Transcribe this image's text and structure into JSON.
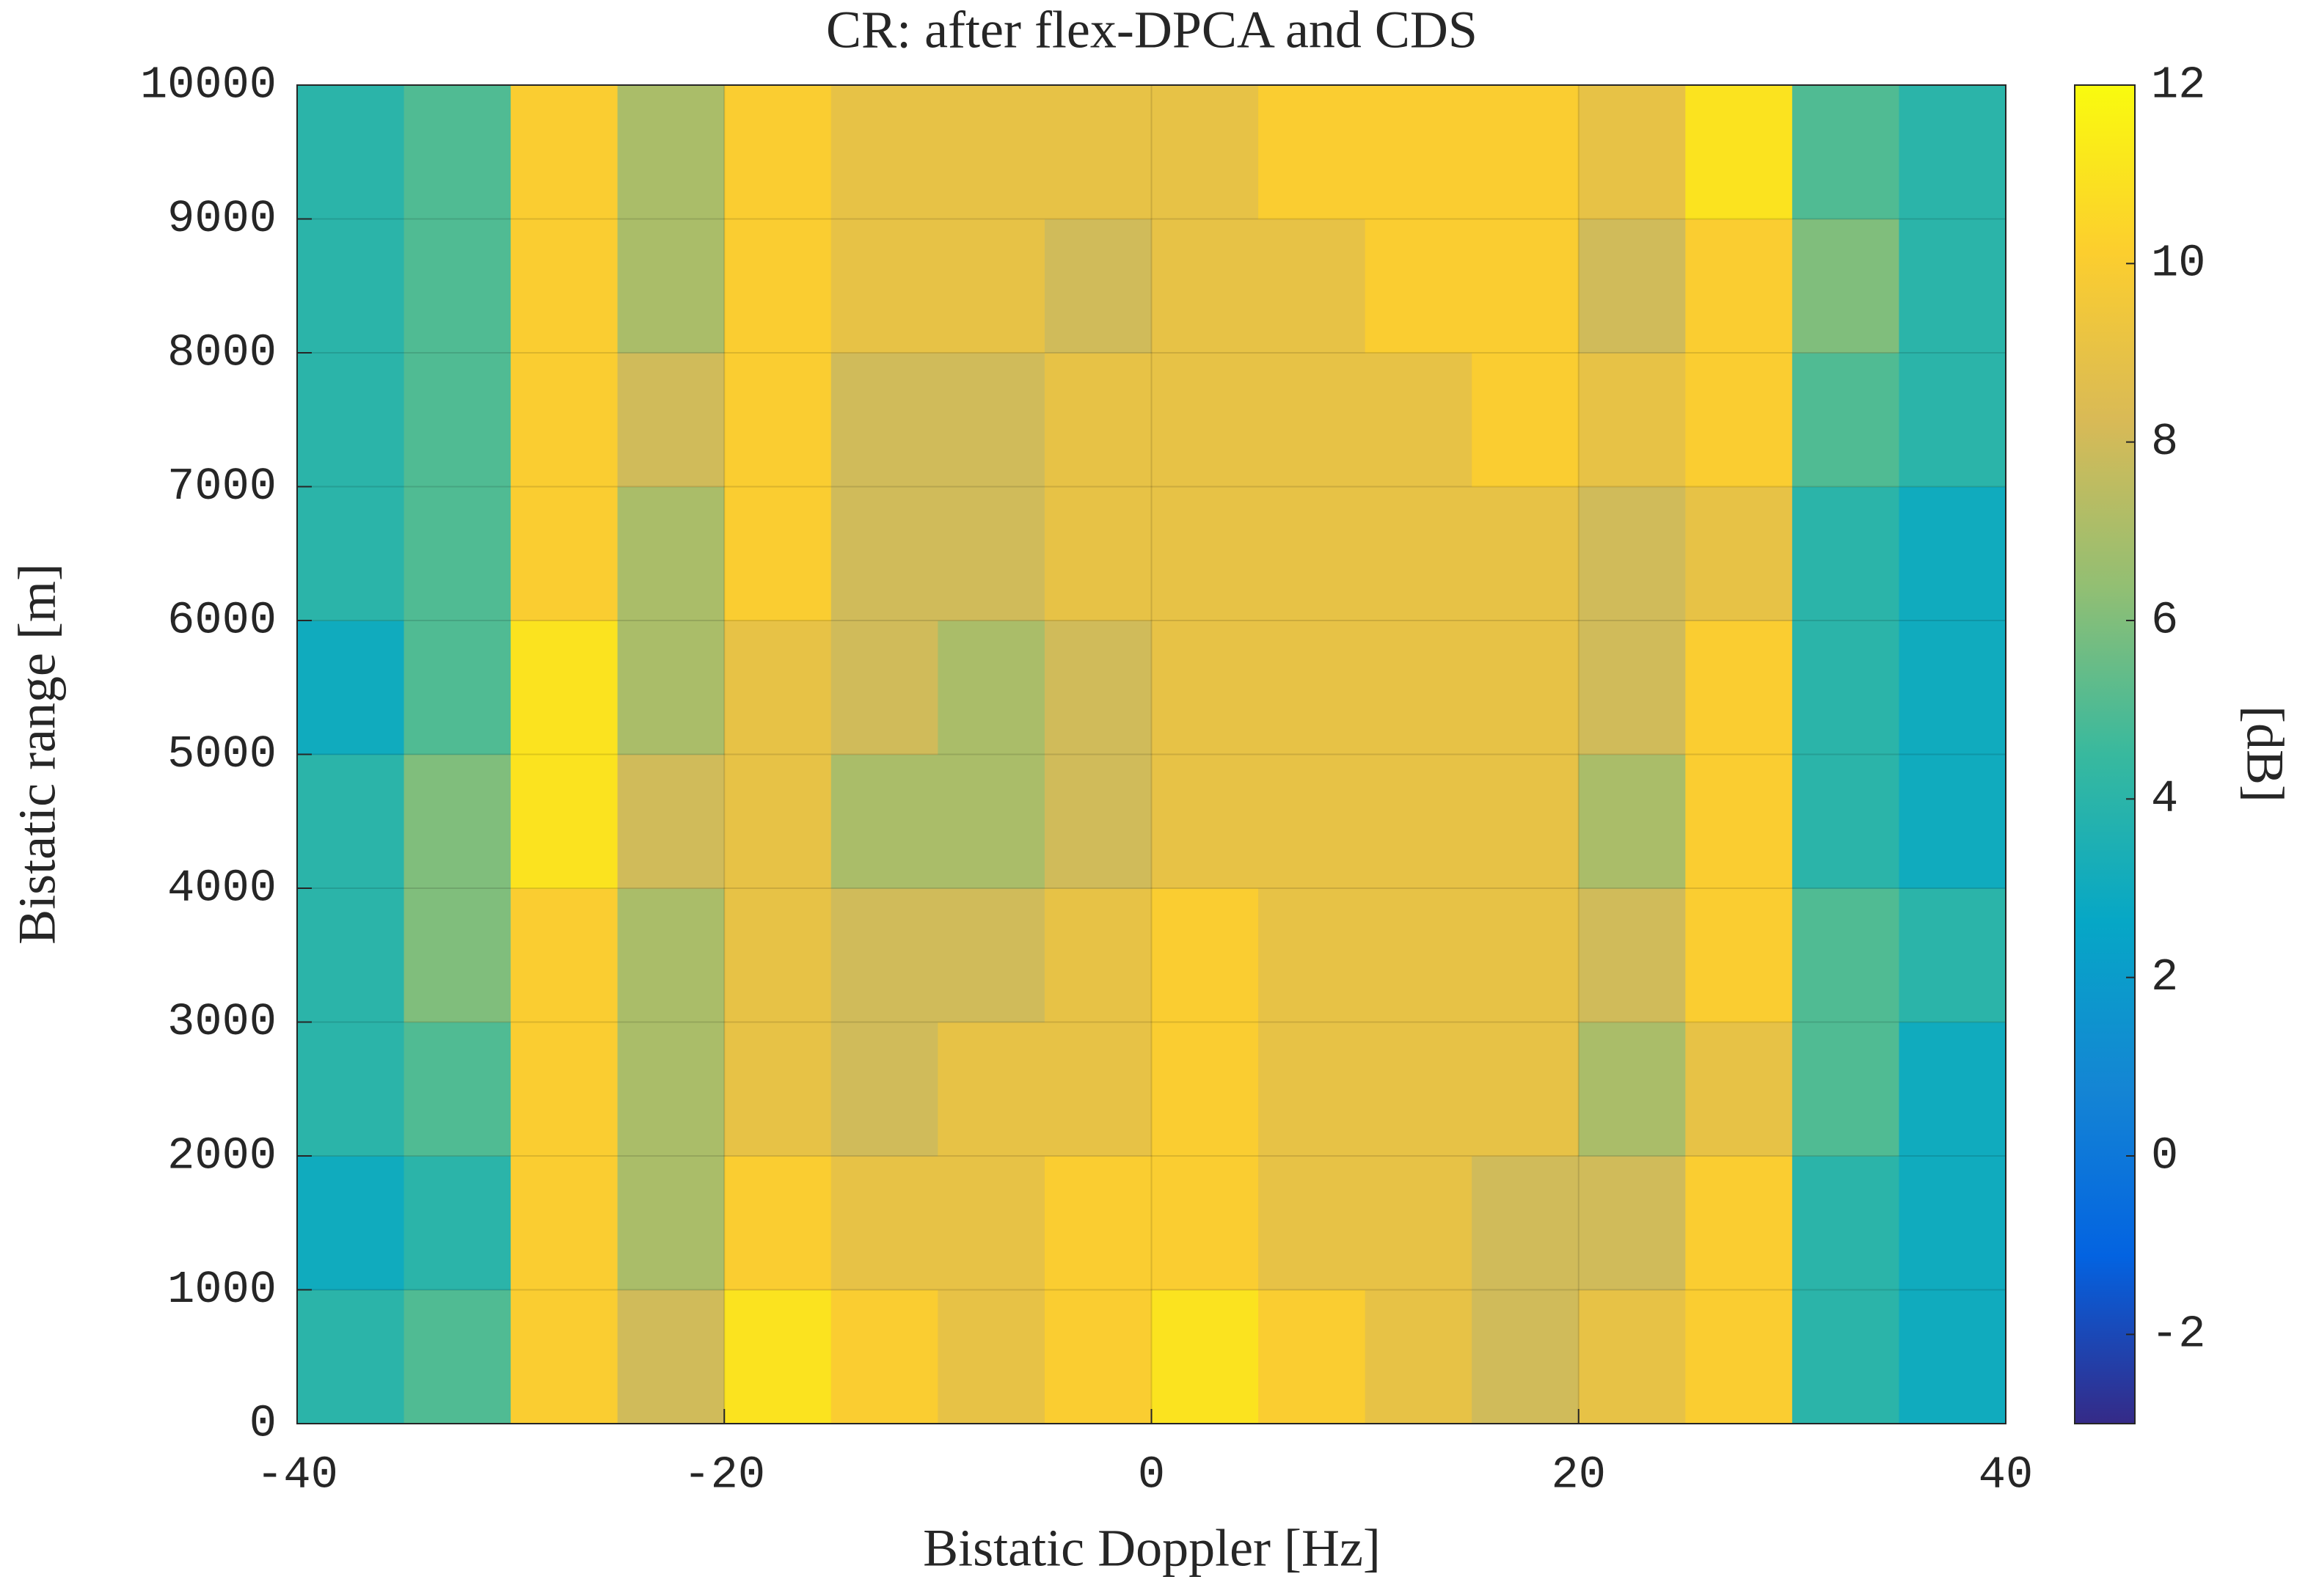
{
  "chart_data": {
    "type": "heatmap",
    "title": "CR: after flex-DPCA and CDS",
    "xlabel": "Bistatic Doppler [Hz]",
    "ylabel": "Bistatic range [m]",
    "colorbar_label": "[dB]",
    "xbins": [
      -40,
      -35,
      -30,
      -25,
      -20,
      -15,
      -10,
      -5,
      0,
      5,
      10,
      15,
      20,
      25,
      30,
      35,
      40
    ],
    "ybins": [
      0,
      1000,
      2000,
      3000,
      4000,
      5000,
      6000,
      7000,
      8000,
      9000,
      10000
    ],
    "values": [
      [
        4,
        5,
        10,
        8,
        11,
        10,
        9,
        10,
        11,
        10,
        9,
        8,
        9,
        10,
        4,
        3
      ],
      [
        3,
        4,
        10,
        7,
        10,
        9,
        9,
        10,
        10,
        9,
        9,
        8,
        8,
        10,
        4,
        3
      ],
      [
        4,
        5,
        10,
        7,
        9,
        8,
        9,
        9,
        10,
        9,
        9,
        9,
        7,
        9,
        5,
        3
      ],
      [
        4,
        6,
        10,
        7,
        9,
        8,
        8,
        9,
        10,
        9,
        9,
        9,
        8,
        10,
        5,
        4
      ],
      [
        4,
        6,
        11,
        8,
        9,
        7,
        7,
        8,
        9,
        9,
        9,
        9,
        7,
        10,
        4,
        3
      ],
      [
        3,
        5,
        11,
        7,
        9,
        8,
        7,
        8,
        9,
        9,
        9,
        9,
        8,
        10,
        4,
        3
      ],
      [
        4,
        5,
        10,
        7,
        10,
        8,
        8,
        9,
        9,
        9,
        9,
        9,
        8,
        9,
        4,
        3
      ],
      [
        4,
        5,
        10,
        8,
        10,
        8,
        8,
        9,
        9,
        9,
        9,
        10,
        9,
        10,
        5,
        4
      ],
      [
        4,
        5,
        10,
        7,
        10,
        9,
        9,
        8,
        9,
        9,
        10,
        10,
        8,
        10,
        6,
        4
      ],
      [
        4,
        5,
        10,
        7,
        10,
        9,
        9,
        9,
        9,
        10,
        10,
        10,
        9,
        11,
        5,
        4
      ]
    ],
    "xlim": [
      -40,
      40
    ],
    "xticks": [
      -40,
      -20,
      0,
      20,
      40
    ],
    "ylim": [
      0,
      10000
    ],
    "yticks": [
      0,
      1000,
      2000,
      3000,
      4000,
      5000,
      6000,
      7000,
      8000,
      9000,
      10000
    ],
    "clim": [
      -3,
      12
    ],
    "cticks": [
      -2,
      0,
      2,
      4,
      6,
      8,
      10,
      12
    ],
    "colormap": [
      "#352a87",
      "#0363e1",
      "#1485d4",
      "#06a7c6",
      "#38b99e",
      "#92bf73",
      "#d9ba56",
      "#fcce2e",
      "#f9fb0e"
    ],
    "grid": true
  }
}
